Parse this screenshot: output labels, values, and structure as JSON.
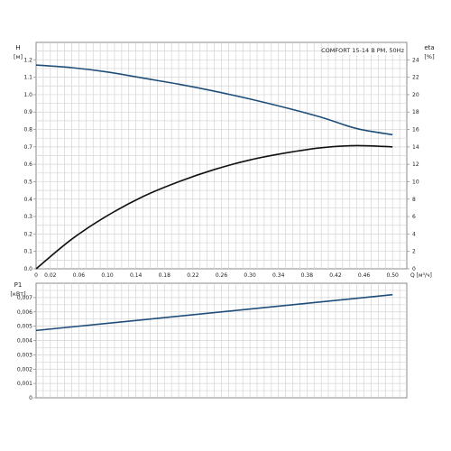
{
  "chart_data": [
    {
      "type": "line",
      "title": "COMFORT  15-14 B PM, 50Hz",
      "x_axis": {
        "label": "Q [м³/ч]",
        "range": [
          0,
          0.52
        ],
        "tick_values": [
          0,
          0.02,
          0.06,
          0.1,
          0.14,
          0.18,
          0.22,
          0.26,
          0.3,
          0.34,
          0.38,
          0.42,
          0.46,
          0.5
        ],
        "tick_labels": [
          "0",
          "0.02",
          "0.06",
          "0.10",
          "0.14",
          "0.18",
          "0.22",
          "0.26",
          "0.30",
          "0.34",
          "0.38",
          "0.42",
          "0.46",
          "0.50"
        ]
      },
      "y_axis_left": {
        "label": "H",
        "unit": "[м]",
        "range": [
          0,
          1.3
        ],
        "tick_values": [
          0,
          0.1,
          0.2,
          0.3,
          0.4,
          0.5,
          0.6,
          0.7,
          0.8,
          0.9,
          1.0,
          1.1,
          1.2
        ],
        "tick_labels": [
          "0.0",
          "0.1",
          "0.2",
          "0.3",
          "0.4",
          "0.5",
          "0.6",
          "0.7",
          "0.8",
          "0.9",
          "1.0",
          "1.1",
          "1.2"
        ]
      },
      "y_axis_right": {
        "label": "eta",
        "unit": "[%]",
        "range": [
          0,
          26
        ],
        "tick_values": [
          0,
          2,
          4,
          6,
          8,
          10,
          12,
          14,
          16,
          18,
          20,
          22,
          24
        ],
        "tick_labels": [
          "0",
          "2",
          "4",
          "6",
          "8",
          "10",
          "12",
          "14",
          "16",
          "18",
          "20",
          "22",
          "24"
        ]
      },
      "grid": true,
      "series": [
        {
          "axis": "left",
          "color": "#1f4e79",
          "points": [
            [
              0,
              1.17
            ],
            [
              0.05,
              1.155
            ],
            [
              0.1,
              1.13
            ],
            [
              0.15,
              1.095
            ],
            [
              0.2,
              1.06
            ],
            [
              0.25,
              1.02
            ],
            [
              0.3,
              0.975
            ],
            [
              0.35,
              0.925
            ],
            [
              0.4,
              0.87
            ],
            [
              0.45,
              0.805
            ],
            [
              0.5,
              0.77
            ]
          ]
        },
        {
          "axis": "right",
          "color": "#111111",
          "points": [
            [
              0,
              0
            ],
            [
              0.05,
              3.4
            ],
            [
              0.1,
              6.1
            ],
            [
              0.15,
              8.3
            ],
            [
              0.2,
              10.0
            ],
            [
              0.25,
              11.4
            ],
            [
              0.3,
              12.5
            ],
            [
              0.35,
              13.3
            ],
            [
              0.4,
              13.9
            ],
            [
              0.45,
              14.15
            ],
            [
              0.5,
              14.0
            ]
          ]
        }
      ]
    },
    {
      "type": "line",
      "x_axis": {
        "range": [
          0,
          0.52
        ],
        "tick_values": [
          0,
          0.02,
          0.06,
          0.1,
          0.14,
          0.18,
          0.22,
          0.26,
          0.3,
          0.34,
          0.38,
          0.42,
          0.46,
          0.5
        ]
      },
      "y_axis_left": {
        "label": "P1",
        "unit": "[кВт]",
        "range": [
          0,
          0.008
        ],
        "tick_values": [
          0,
          0.001,
          0.002,
          0.003,
          0.004,
          0.005,
          0.006,
          0.007
        ],
        "tick_labels": [
          "0",
          "0,001",
          "0,002",
          "0,003",
          "0,004",
          "0,005",
          "0,006",
          "0,007"
        ]
      },
      "grid": true,
      "series": [
        {
          "axis": "left",
          "color": "#1f4e79",
          "points": [
            [
              0,
              0.0047
            ],
            [
              0.5,
              0.0072
            ]
          ]
        }
      ]
    }
  ]
}
